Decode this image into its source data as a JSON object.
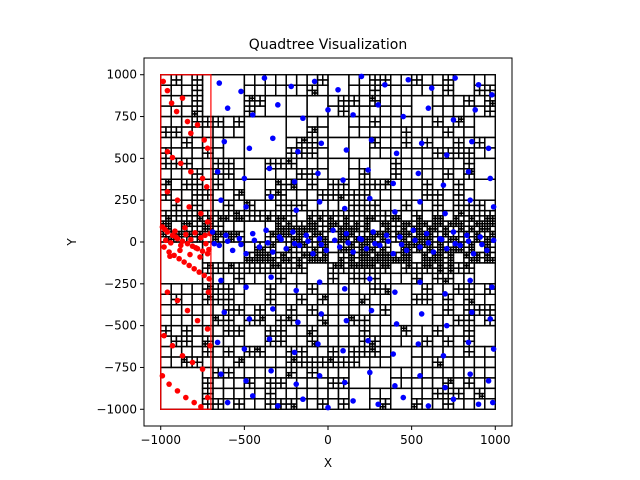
{
  "chart_data": {
    "type": "scatter",
    "title": "Quadtree Visualization",
    "xlabel": "X",
    "ylabel": "Y",
    "xlim": [
      -1100,
      1100
    ],
    "ylim": [
      -1100,
      1100
    ],
    "xticks": [
      -1000,
      -500,
      0,
      500,
      1000
    ],
    "xtick_labels": [
      "−1000",
      "−500",
      "0",
      "500",
      "1000"
    ],
    "yticks": [
      -1000,
      -750,
      -500,
      -250,
      0,
      250,
      500,
      750,
      1000
    ],
    "ytick_labels": [
      "−1000",
      "−750",
      "−500",
      "−250",
      "0",
      "250",
      "500",
      "750",
      "1000"
    ],
    "grid": false,
    "colors": {
      "grid_lines": "#000000",
      "highlight_region": "#ff0000",
      "points_default": "#0000ff",
      "points_highlight": "#ff0000"
    },
    "quadtree_bounds": {
      "x": [
        -1000,
        1000
      ],
      "y": [
        -1000,
        1000
      ]
    },
    "highlight_region": {
      "x": [
        -1000,
        -700
      ],
      "y": [
        -1000,
        1000
      ]
    },
    "series": [
      {
        "color": "#ff0000",
        "points": [
          [
            -985,
            960
          ],
          [
            -960,
            905
          ],
          [
            -935,
            830
          ],
          [
            -905,
            780
          ],
          [
            -870,
            860
          ],
          [
            -840,
            720
          ],
          [
            -820,
            650
          ],
          [
            -780,
            700
          ],
          [
            -740,
            610
          ],
          [
            -720,
            560
          ],
          [
            -960,
            540
          ],
          [
            -930,
            505
          ],
          [
            -880,
            470
          ],
          [
            -820,
            420
          ],
          [
            -750,
            380
          ],
          [
            -960,
            300
          ],
          [
            -900,
            250
          ],
          [
            -830,
            210
          ],
          [
            -760,
            170
          ],
          [
            -720,
            120
          ],
          [
            -990,
            90
          ],
          [
            -960,
            60
          ],
          [
            -930,
            40
          ],
          [
            -900,
            20
          ],
          [
            -870,
            5
          ],
          [
            -840,
            -10
          ],
          [
            -810,
            -25
          ],
          [
            -780,
            -40
          ],
          [
            -750,
            -55
          ],
          [
            -720,
            -70
          ],
          [
            -980,
            -30
          ],
          [
            -950,
            -60
          ],
          [
            -920,
            -80
          ],
          [
            -890,
            -100
          ],
          [
            -860,
            -120
          ],
          [
            -830,
            -140
          ],
          [
            -800,
            -160
          ],
          [
            -770,
            -180
          ],
          [
            -740,
            -200
          ],
          [
            -710,
            -220
          ],
          [
            -970,
            10
          ],
          [
            -940,
            -5
          ],
          [
            -910,
            30
          ],
          [
            -880,
            -20
          ],
          [
            -850,
            45
          ],
          [
            -820,
            15
          ],
          [
            -790,
            -35
          ],
          [
            -760,
            25
          ],
          [
            -730,
            -10
          ],
          [
            -705,
            50
          ],
          [
            -975,
            75
          ],
          [
            -945,
            -85
          ],
          [
            -915,
            65
          ],
          [
            -885,
            -50
          ],
          [
            -855,
            85
          ],
          [
            -825,
            -75
          ],
          [
            -795,
            55
          ],
          [
            -765,
            -90
          ],
          [
            -735,
            40
          ],
          [
            -712,
            -45
          ],
          [
            -960,
            -300
          ],
          [
            -900,
            -350
          ],
          [
            -840,
            -410
          ],
          [
            -780,
            -470
          ],
          [
            -720,
            -520
          ],
          [
            -980,
            -560
          ],
          [
            -930,
            -620
          ],
          [
            -870,
            -680
          ],
          [
            -810,
            -720
          ],
          [
            -750,
            -760
          ],
          [
            -990,
            -800
          ],
          [
            -950,
            -850
          ],
          [
            -900,
            -890
          ],
          [
            -850,
            -930
          ],
          [
            -800,
            -960
          ],
          [
            -760,
            -985
          ],
          [
            -720,
            -930
          ],
          [
            -705,
            -620
          ],
          [
            -715,
            -300
          ],
          [
            -725,
            330
          ]
        ]
      },
      {
        "color": "#0000ff",
        "points": [
          [
            -650,
            950
          ],
          [
            -520,
            900
          ],
          [
            -380,
            980
          ],
          [
            -220,
            930
          ],
          [
            -80,
            960
          ],
          [
            60,
            910
          ],
          [
            200,
            990
          ],
          [
            340,
            940
          ],
          [
            480,
            970
          ],
          [
            620,
            920
          ],
          [
            760,
            980
          ],
          [
            900,
            940
          ],
          [
            980,
            880
          ],
          [
            -600,
            800
          ],
          [
            -450,
            760
          ],
          [
            -300,
            820
          ],
          [
            -150,
            740
          ],
          [
            0,
            790
          ],
          [
            150,
            760
          ],
          [
            300,
            820
          ],
          [
            450,
            750
          ],
          [
            600,
            800
          ],
          [
            750,
            730
          ],
          [
            880,
            790
          ],
          [
            -620,
            600
          ],
          [
            -470,
            560
          ],
          [
            -330,
            620
          ],
          [
            -180,
            540
          ],
          [
            -40,
            590
          ],
          [
            110,
            550
          ],
          [
            260,
            610
          ],
          [
            410,
            530
          ],
          [
            560,
            590
          ],
          [
            710,
            520
          ],
          [
            860,
            600
          ],
          [
            960,
            560
          ],
          [
            -660,
            420
          ],
          [
            -500,
            380
          ],
          [
            -350,
            440
          ],
          [
            -200,
            360
          ],
          [
            -60,
            410
          ],
          [
            90,
            370
          ],
          [
            240,
            430
          ],
          [
            390,
            350
          ],
          [
            540,
            410
          ],
          [
            690,
            340
          ],
          [
            840,
            420
          ],
          [
            970,
            380
          ],
          [
            -640,
            250
          ],
          [
            -490,
            210
          ],
          [
            -340,
            270
          ],
          [
            -190,
            190
          ],
          [
            -50,
            240
          ],
          [
            100,
            200
          ],
          [
            250,
            260
          ],
          [
            400,
            180
          ],
          [
            550,
            240
          ],
          [
            700,
            170
          ],
          [
            850,
            250
          ],
          [
            990,
            210
          ],
          [
            -690,
            60
          ],
          [
            -650,
            -20
          ],
          [
            -610,
            40
          ],
          [
            -570,
            -50
          ],
          [
            -530,
            20
          ],
          [
            -490,
            -70
          ],
          [
            -450,
            50
          ],
          [
            -410,
            -30
          ],
          [
            -370,
            70
          ],
          [
            -330,
            -60
          ],
          [
            -290,
            30
          ],
          [
            -250,
            -40
          ],
          [
            -210,
            60
          ],
          [
            -170,
            -20
          ],
          [
            -130,
            40
          ],
          [
            -90,
            -70
          ],
          [
            -50,
            20
          ],
          [
            -10,
            -50
          ],
          [
            30,
            70
          ],
          [
            70,
            -30
          ],
          [
            110,
            50
          ],
          [
            150,
            -60
          ],
          [
            190,
            20
          ],
          [
            230,
            -40
          ],
          [
            270,
            60
          ],
          [
            310,
            -20
          ],
          [
            350,
            40
          ],
          [
            390,
            -70
          ],
          [
            430,
            30
          ],
          [
            470,
            -50
          ],
          [
            510,
            70
          ],
          [
            550,
            -30
          ],
          [
            590,
            50
          ],
          [
            630,
            -60
          ],
          [
            670,
            20
          ],
          [
            710,
            -40
          ],
          [
            750,
            60
          ],
          [
            790,
            -20
          ],
          [
            830,
            40
          ],
          [
            870,
            -70
          ],
          [
            910,
            30
          ],
          [
            950,
            -50
          ],
          [
            990,
            10
          ],
          [
            -680,
            -10
          ],
          [
            -600,
            5
          ],
          [
            -520,
            -15
          ],
          [
            -440,
            10
          ],
          [
            -360,
            -5
          ],
          [
            -280,
            15
          ],
          [
            -200,
            -10
          ],
          [
            -120,
            5
          ],
          [
            -40,
            -15
          ],
          [
            40,
            10
          ],
          [
            120,
            -5
          ],
          [
            200,
            15
          ],
          [
            280,
            -10
          ],
          [
            360,
            5
          ],
          [
            440,
            -15
          ],
          [
            520,
            10
          ],
          [
            600,
            -5
          ],
          [
            680,
            15
          ],
          [
            760,
            -10
          ],
          [
            840,
            5
          ],
          [
            920,
            -15
          ],
          [
            -640,
            -230
          ],
          [
            -490,
            -270
          ],
          [
            -340,
            -210
          ],
          [
            -190,
            -290
          ],
          [
            -50,
            -240
          ],
          [
            100,
            -280
          ],
          [
            250,
            -220
          ],
          [
            400,
            -300
          ],
          [
            550,
            -240
          ],
          [
            700,
            -310
          ],
          [
            850,
            -230
          ],
          [
            980,
            -270
          ],
          [
            -620,
            -420
          ],
          [
            -470,
            -460
          ],
          [
            -330,
            -400
          ],
          [
            -180,
            -480
          ],
          [
            -40,
            -430
          ],
          [
            110,
            -470
          ],
          [
            260,
            -410
          ],
          [
            410,
            -490
          ],
          [
            560,
            -430
          ],
          [
            710,
            -500
          ],
          [
            860,
            -420
          ],
          [
            970,
            -460
          ],
          [
            -660,
            -600
          ],
          [
            -500,
            -640
          ],
          [
            -350,
            -580
          ],
          [
            -200,
            -660
          ],
          [
            -60,
            -610
          ],
          [
            90,
            -650
          ],
          [
            240,
            -590
          ],
          [
            390,
            -670
          ],
          [
            540,
            -610
          ],
          [
            690,
            -680
          ],
          [
            840,
            -600
          ],
          [
            990,
            -640
          ],
          [
            -640,
            -790
          ],
          [
            -490,
            -830
          ],
          [
            -340,
            -770
          ],
          [
            -190,
            -850
          ],
          [
            -50,
            -800
          ],
          [
            100,
            -840
          ],
          [
            250,
            -780
          ],
          [
            400,
            -860
          ],
          [
            550,
            -800
          ],
          [
            700,
            -870
          ],
          [
            850,
            -790
          ],
          [
            960,
            -830
          ],
          [
            -600,
            -960
          ],
          [
            -450,
            -920
          ],
          [
            -300,
            -980
          ],
          [
            -150,
            -940
          ],
          [
            0,
            -990
          ],
          [
            150,
            -950
          ],
          [
            300,
            -970
          ],
          [
            450,
            -930
          ],
          [
            600,
            -980
          ],
          [
            750,
            -940
          ],
          [
            900,
            -970
          ],
          [
            985,
            -960
          ]
        ]
      }
    ]
  }
}
